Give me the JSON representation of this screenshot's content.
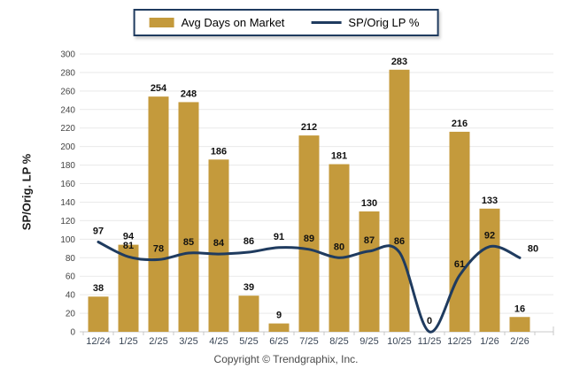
{
  "legend": {
    "bar_label": "Avg Days on Market",
    "line_label": "SP/Orig LP %"
  },
  "y_axis_title": "SP/Orig. LP %",
  "footer": {
    "copyright": "Copyright © Trendgraphix, Inc."
  },
  "colors": {
    "bar": "#C49A3C",
    "line": "#1F3B5F",
    "grid": "#E9E9E9",
    "axis": "#C9C9C9",
    "y_tick_label": "#444444",
    "x_tick_label": "#3A4656",
    "value_label": "#111111",
    "legend_border": "#1F3B5F",
    "copyright": "#4A4A4A"
  },
  "chart_data": {
    "type": "combo",
    "categories": [
      "12/24",
      "1/25",
      "2/25",
      "3/25",
      "4/25",
      "5/25",
      "6/25",
      "7/25",
      "8/25",
      "9/25",
      "10/25",
      "11/25",
      "12/25",
      "1/26",
      "2/26"
    ],
    "series": [
      {
        "name": "Avg Days on Market",
        "type": "bar",
        "values": [
          38,
          94,
          254,
          248,
          186,
          39,
          9,
          212,
          181,
          130,
          283,
          0,
          216,
          133,
          16
        ]
      },
      {
        "name": "SP/Orig LP %",
        "type": "line",
        "values": [
          97,
          81,
          78,
          85,
          84,
          86,
          91,
          89,
          80,
          87,
          86,
          0,
          61,
          92,
          80
        ]
      }
    ],
    "title": "",
    "xlabel": "",
    "ylabel": "SP/Orig. LP %",
    "ylim": [
      0,
      300
    ],
    "yticks": [
      0,
      20,
      40,
      60,
      80,
      100,
      120,
      140,
      160,
      180,
      200,
      220,
      240,
      260,
      280,
      300
    ],
    "grid": true,
    "legend_position": "top-center",
    "data_labels": true
  }
}
